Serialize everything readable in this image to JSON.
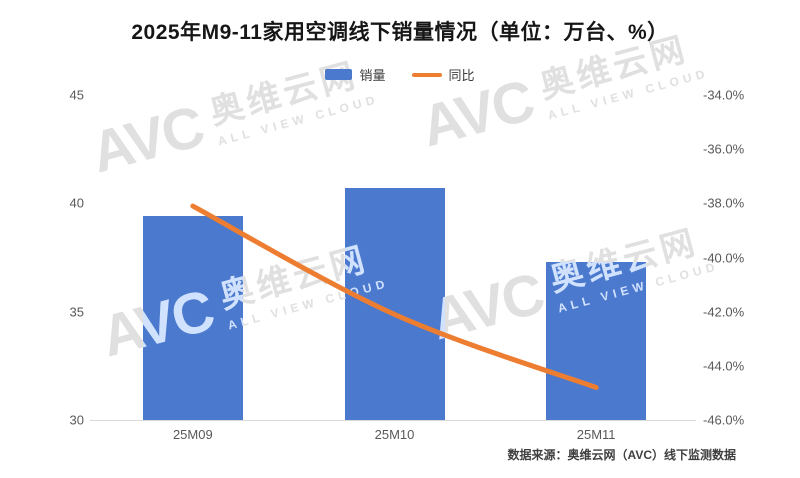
{
  "title": "2025年M9-11家用空调线下销量情况（单位：万台、%）",
  "footer": {
    "source": "数据来源：奥维云网（AVC）线下监测数据"
  },
  "watermark": {
    "logo": "AVC",
    "cn": "奥维云网",
    "en": "ALL VIEW CLOUD"
  },
  "colors": {
    "bar": "#4b79cd",
    "line": "#ed7d31",
    "axis_text": "#595959",
    "axis_line": "#d9d9d9"
  },
  "chart_data": {
    "type": "bar",
    "title": "2025年M9-11家用空调线下销量情况（单位：万台、%）",
    "categories": [
      "25M09",
      "25M10",
      "25M11"
    ],
    "series": [
      {
        "name": "销量",
        "type": "bar",
        "axis": "left",
        "unit": "万台",
        "color": "#4b79cd",
        "values": [
          39.4,
          40.7,
          37.3
        ]
      },
      {
        "name": "同比",
        "type": "line",
        "axis": "right",
        "unit": "%",
        "color": "#ed7d31",
        "values": [
          -38.1,
          -42.1,
          -44.8
        ]
      }
    ],
    "left_axis": {
      "min": 30,
      "max": 45,
      "ticks": [
        45,
        40,
        35,
        30
      ]
    },
    "right_axis": {
      "min": -46,
      "max": -34,
      "ticks": [
        "-34.0%",
        "-36.0%",
        "-38.0%",
        "-40.0%",
        "-42.0%",
        "-44.0%",
        "-46.0%"
      ]
    },
    "grid": false,
    "legend_position": "top"
  }
}
